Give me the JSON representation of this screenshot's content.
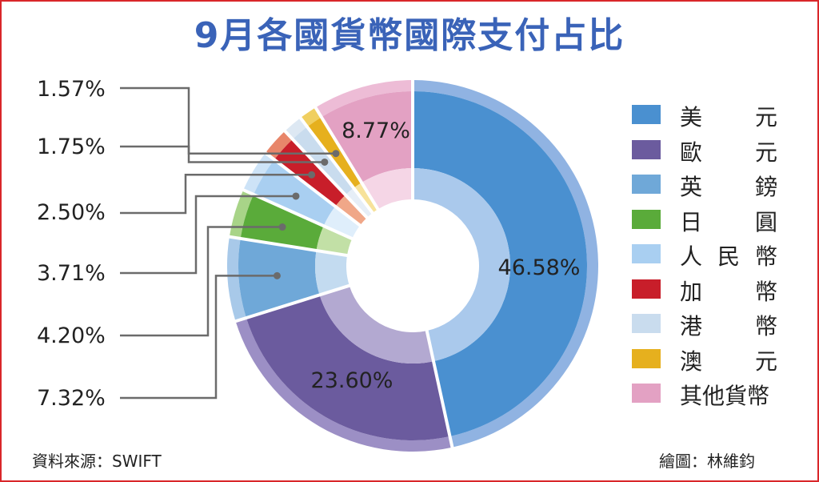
{
  "title": "9月各國貨幣國際支付占比",
  "source": "資料來源：SWIFT",
  "credit": "繪圖：林維鈞",
  "left_labels": [
    "1.57%",
    "1.75%",
    "2.50%",
    "3.71%",
    "4.20%",
    "7.32%"
  ],
  "chart_data": {
    "type": "pie",
    "title": "9月各國貨幣國際支付占比",
    "legend_position": "right",
    "slices": [
      {
        "name": "美　元",
        "value": 46.58,
        "color": "#4a90d0",
        "inner": "#aac9ec",
        "outer": "#90b3e2",
        "label": "46.58%"
      },
      {
        "name": "歐　元",
        "value": 23.6,
        "color": "#6b5b9e",
        "inner": "#b3a9d1",
        "outer": "#9c8fc5",
        "label": "23.60%"
      },
      {
        "name": "英　鎊",
        "value": 7.32,
        "color": "#6fa8d8",
        "inner": "#c3dbf0",
        "outer": "#a8c9e9",
        "label": "7.32%"
      },
      {
        "name": "日　圓",
        "value": 4.2,
        "color": "#5aab3a",
        "inner": "#c2e0a6",
        "outer": "#a8d488",
        "label": "4.20%"
      },
      {
        "name": "人民幣",
        "value": 3.71,
        "color": "#a9cff1",
        "inner": "#dfeefb",
        "outer": "#cde3f7",
        "label": "3.71%"
      },
      {
        "name": "加　幣",
        "value": 2.5,
        "color": "#c81e2a",
        "inner": "#f0a788",
        "outer": "#e8866a",
        "label": "2.50%"
      },
      {
        "name": "港　幣",
        "value": 1.75,
        "color": "#c9dcee",
        "inner": "#e6eef7",
        "outer": "#dde8f3",
        "label": "1.75%"
      },
      {
        "name": "澳　元",
        "value": 1.57,
        "color": "#e6b01e",
        "inner": "#f7e29a",
        "outer": "#f0cf60",
        "label": "1.57%"
      },
      {
        "name": "其他貨幣",
        "value": 8.77,
        "color": "#e3a1c3",
        "inner": "#f5d6e6",
        "outer": "#edbcd6",
        "label": "8.77%"
      }
    ]
  }
}
